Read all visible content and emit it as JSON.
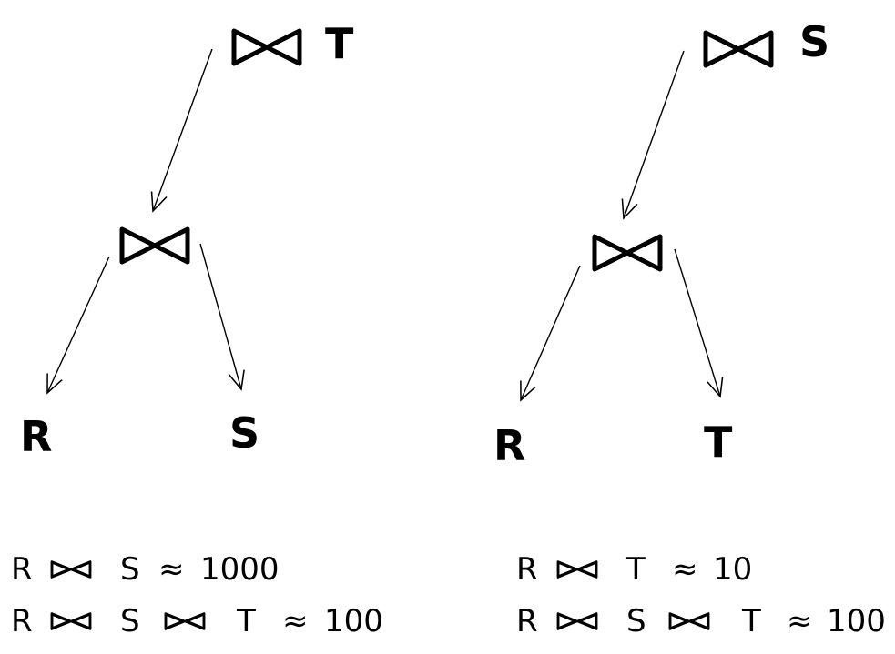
{
  "left_tree": {
    "top_label": "T",
    "leaf_left": "R",
    "leaf_right": "S"
  },
  "right_tree": {
    "top_label": "S",
    "leaf_left": "R",
    "leaf_right": "T"
  },
  "left_formulas": {
    "f1": {
      "a": "R",
      "b": "S",
      "approx": "≈",
      "value": "1000"
    },
    "f2": {
      "a": "R",
      "b": "S",
      "c": "T",
      "approx": "≈",
      "value": "100"
    }
  },
  "right_formulas": {
    "f1": {
      "a": "R",
      "b": "T",
      "approx": "≈",
      "value": "10"
    },
    "f2": {
      "a": "R",
      "b": "S",
      "c": "T",
      "approx": "≈",
      "value": "100"
    }
  },
  "colors": {
    "ink": "#000000",
    "background": "#ffffff"
  },
  "icons": {
    "join": "bowtie-join-icon"
  }
}
